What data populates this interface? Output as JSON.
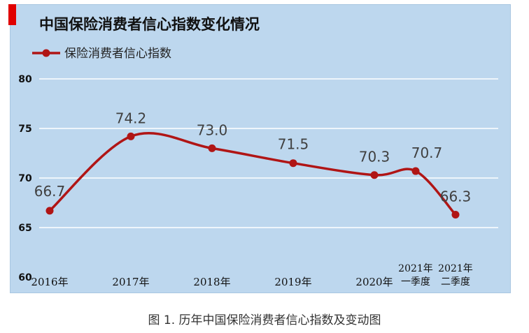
{
  "caption": "图 1. 历年中国保险消费者信心指数及变动图",
  "colors": {
    "panel_bg": "#bdd7ee",
    "accent": "#e00000",
    "series": "#b01515",
    "grid": "#ffffff"
  },
  "chart_data": {
    "type": "line",
    "title": "中国保险消费者信心指数变化情况",
    "categories": [
      [
        "2016年"
      ],
      [
        "2017年"
      ],
      [
        "2018年"
      ],
      [
        "2019年"
      ],
      [
        "2020年"
      ],
      [
        "2021年",
        "一季度"
      ],
      [
        "2021年",
        "二季度"
      ]
    ],
    "series": [
      {
        "name": "保险消费者信心指数",
        "values": [
          66.7,
          74.2,
          73.0,
          71.5,
          70.3,
          70.7,
          66.3
        ],
        "labels": [
          "66.7",
          "74.2",
          "73.0",
          "71.5",
          "70.3",
          "70.7",
          "66.3"
        ]
      }
    ],
    "y_ticks": [
      "60",
      "65",
      "70",
      "75",
      "80"
    ],
    "ylim": [
      60,
      80
    ],
    "grid": true,
    "legend_position": "top-left",
    "smooth": true
  }
}
